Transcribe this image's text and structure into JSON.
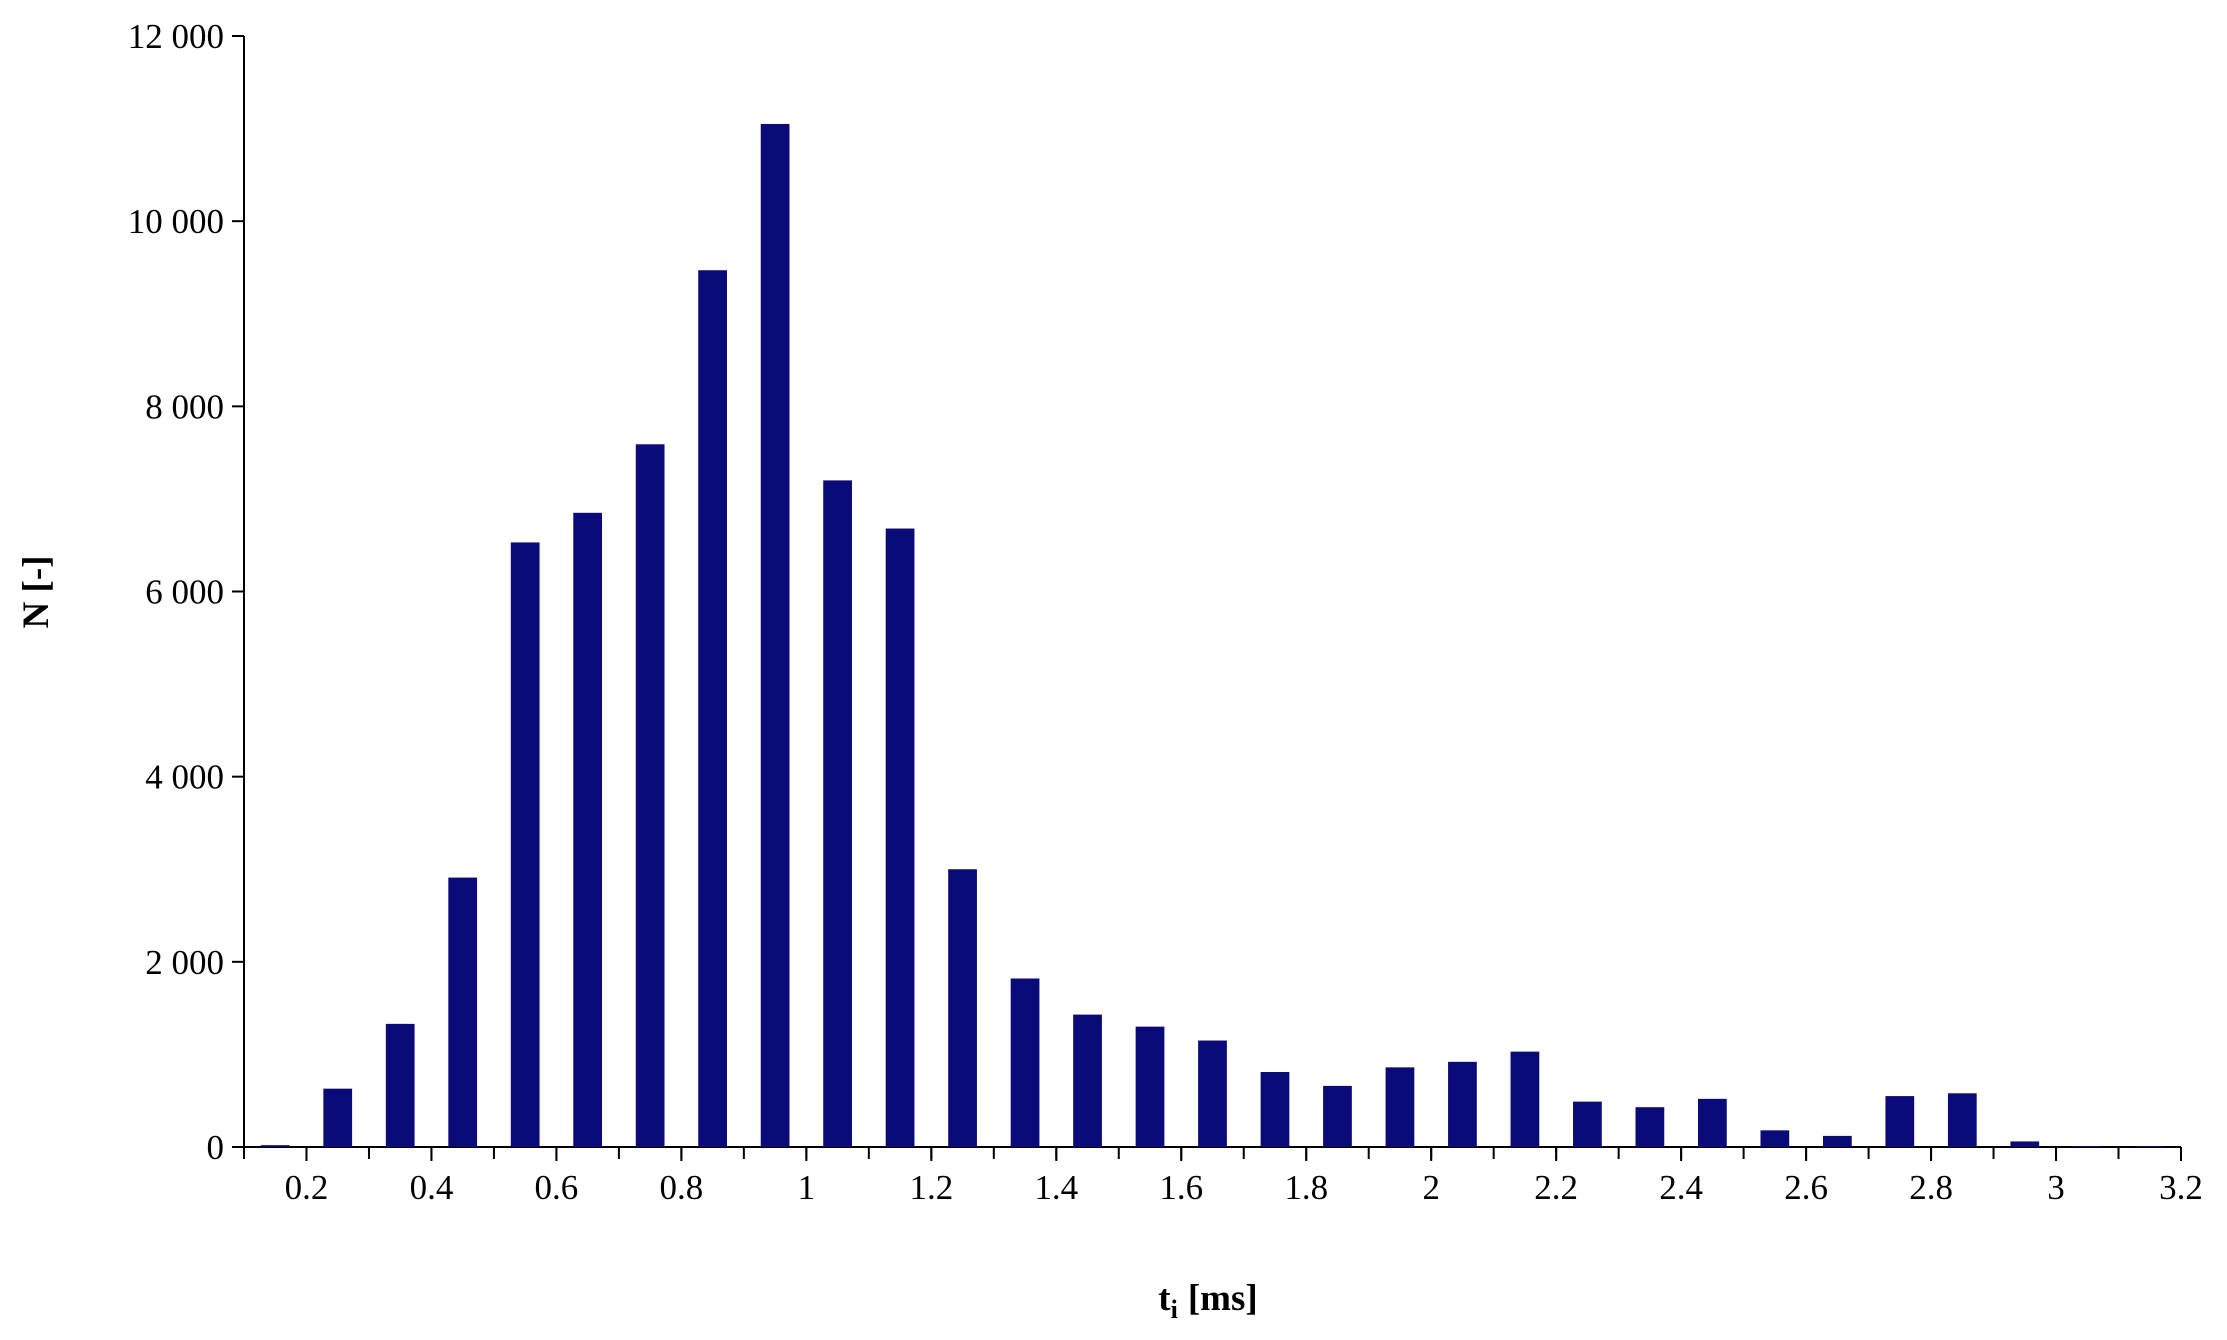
{
  "chart_data": {
    "type": "histogram",
    "x_label": "t",
    "x_label_sub": "i",
    "x_label_unit": "[ms]",
    "y_label": "N [-]",
    "bins": [
      0.1,
      0.2,
      0.3,
      0.4,
      0.5,
      0.6,
      0.7,
      0.8,
      0.9,
      1.0,
      1.1,
      1.2,
      1.3,
      1.4,
      1.5,
      1.6,
      1.7,
      1.8,
      1.9,
      2.0,
      2.1,
      2.2,
      2.3,
      2.4,
      2.5,
      2.6,
      2.7,
      2.8,
      2.9,
      3.0,
      3.1,
      3.2
    ],
    "values": [
      20,
      630,
      1330,
      2910,
      6530,
      6850,
      7590,
      9470,
      11050,
      7200,
      6680,
      3000,
      1820,
      1430,
      1300,
      1150,
      810,
      660,
      860,
      920,
      1030,
      490,
      430,
      520,
      180,
      120,
      550,
      580,
      60,
      10,
      10
    ],
    "color": "#0a0a78",
    "xlim": [
      0.1,
      3.2
    ],
    "xticks": [
      0.2,
      0.4,
      0.6,
      0.8,
      1,
      1.2,
      1.4,
      1.6,
      1.8,
      2,
      2.2,
      2.4,
      2.6,
      2.8,
      3,
      3.2
    ],
    "ylim": [
      0,
      12000
    ],
    "yticks": [
      0,
      {
        "value": 2000,
        "label": "2 000"
      },
      {
        "value": 4000,
        "label": "4 000"
      },
      {
        "value": 6000,
        "label": "6 000"
      },
      {
        "value": 8000,
        "label": "8 000"
      },
      {
        "value": 10000,
        "label": "10 000"
      },
      {
        "value": 12000,
        "label": "12 000"
      }
    ],
    "grid": false
  }
}
